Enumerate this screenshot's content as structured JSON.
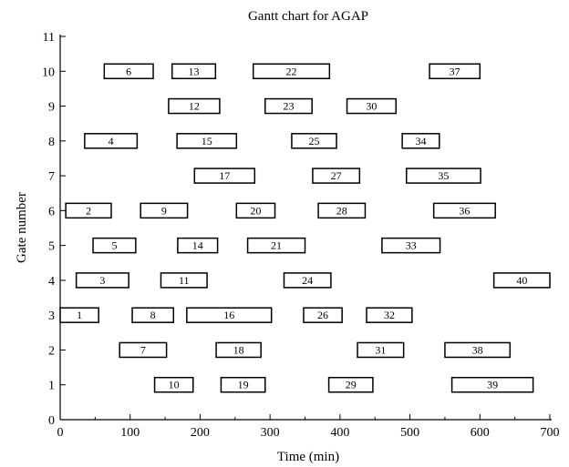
{
  "chart_data": {
    "type": "gantt",
    "title": "Gantt chart for AGAP",
    "xlabel": "Time (min)",
    "ylabel": "Gate number",
    "xlim": [
      0,
      700
    ],
    "ylim": [
      0,
      11
    ],
    "xticks": [
      0,
      100,
      200,
      300,
      400,
      500,
      600,
      700
    ],
    "yticks": [
      0,
      1,
      2,
      3,
      4,
      5,
      6,
      7,
      8,
      9,
      10,
      11
    ],
    "grid": false,
    "bars": [
      {
        "id": "1",
        "gate": 3,
        "start": 0,
        "end": 55
      },
      {
        "id": "2",
        "gate": 6,
        "start": 8,
        "end": 73
      },
      {
        "id": "3",
        "gate": 4,
        "start": 23,
        "end": 98
      },
      {
        "id": "4",
        "gate": 8,
        "start": 35,
        "end": 110
      },
      {
        "id": "5",
        "gate": 5,
        "start": 47,
        "end": 108
      },
      {
        "id": "6",
        "gate": 10,
        "start": 63,
        "end": 133
      },
      {
        "id": "7",
        "gate": 2,
        "start": 85,
        "end": 152
      },
      {
        "id": "8",
        "gate": 3,
        "start": 103,
        "end": 162
      },
      {
        "id": "9",
        "gate": 6,
        "start": 115,
        "end": 182
      },
      {
        "id": "10",
        "gate": 1,
        "start": 135,
        "end": 190
      },
      {
        "id": "11",
        "gate": 4,
        "start": 144,
        "end": 210
      },
      {
        "id": "12",
        "gate": 9,
        "start": 155,
        "end": 228
      },
      {
        "id": "13",
        "gate": 10,
        "start": 160,
        "end": 222
      },
      {
        "id": "14",
        "gate": 5,
        "start": 168,
        "end": 225
      },
      {
        "id": "15",
        "gate": 8,
        "start": 167,
        "end": 252
      },
      {
        "id": "16",
        "gate": 3,
        "start": 181,
        "end": 302
      },
      {
        "id": "17",
        "gate": 7,
        "start": 192,
        "end": 278
      },
      {
        "id": "18",
        "gate": 2,
        "start": 223,
        "end": 287
      },
      {
        "id": "19",
        "gate": 1,
        "start": 230,
        "end": 293
      },
      {
        "id": "20",
        "gate": 6,
        "start": 252,
        "end": 307
      },
      {
        "id": "21",
        "gate": 5,
        "start": 268,
        "end": 350
      },
      {
        "id": "22",
        "gate": 10,
        "start": 276,
        "end": 385
      },
      {
        "id": "23",
        "gate": 9,
        "start": 293,
        "end": 360
      },
      {
        "id": "24",
        "gate": 4,
        "start": 320,
        "end": 387
      },
      {
        "id": "25",
        "gate": 8,
        "start": 331,
        "end": 395
      },
      {
        "id": "26",
        "gate": 3,
        "start": 348,
        "end": 403
      },
      {
        "id": "27",
        "gate": 7,
        "start": 361,
        "end": 428
      },
      {
        "id": "28",
        "gate": 6,
        "start": 369,
        "end": 436
      },
      {
        "id": "29",
        "gate": 1,
        "start": 384,
        "end": 447
      },
      {
        "id": "30",
        "gate": 9,
        "start": 410,
        "end": 480
      },
      {
        "id": "31",
        "gate": 2,
        "start": 425,
        "end": 491
      },
      {
        "id": "32",
        "gate": 3,
        "start": 438,
        "end": 503
      },
      {
        "id": "33",
        "gate": 5,
        "start": 460,
        "end": 543
      },
      {
        "id": "34",
        "gate": 8,
        "start": 489,
        "end": 542
      },
      {
        "id": "35",
        "gate": 7,
        "start": 495,
        "end": 601
      },
      {
        "id": "36",
        "gate": 6,
        "start": 534,
        "end": 622
      },
      {
        "id": "37",
        "gate": 10,
        "start": 528,
        "end": 600
      },
      {
        "id": "38",
        "gate": 2,
        "start": 550,
        "end": 643
      },
      {
        "id": "39",
        "gate": 1,
        "start": 560,
        "end": 676
      },
      {
        "id": "40",
        "gate": 4,
        "start": 620,
        "end": 700
      }
    ]
  }
}
